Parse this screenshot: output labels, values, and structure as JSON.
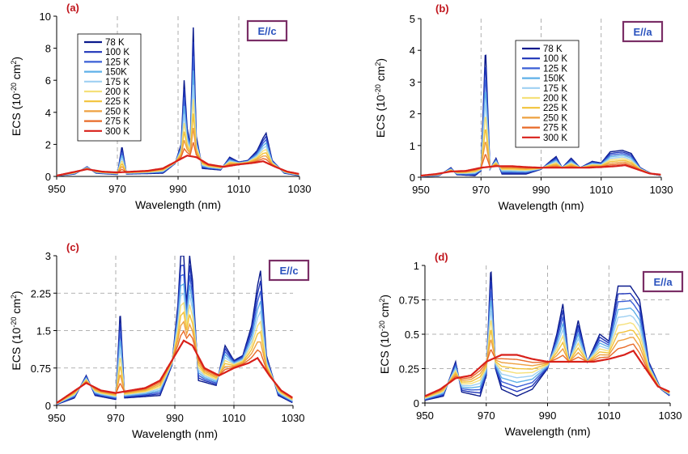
{
  "temperature_palette": [
    "#0a1a8c",
    "#1f35b8",
    "#3a5fd6",
    "#5fb0e8",
    "#9fd0f2",
    "#f5e07a",
    "#f2c23a",
    "#eea040",
    "#e86a28",
    "#d8201a"
  ],
  "chart_data": [
    {
      "type": "line",
      "panel_label": "(a)",
      "polarization": "E//c",
      "xlabel": "Wavelength (nm)",
      "ylabel": "ECS (10-20 cm2)",
      "ylabel_parts": {
        "base": "ECS (10",
        "sup1": "-20",
        "mid": " cm",
        "sup2": "2",
        "end": ")"
      },
      "xlim": [
        950,
        1030
      ],
      "ylim": [
        0,
        10
      ],
      "xticks": [
        950,
        970,
        990,
        1010,
        1030
      ],
      "yticks": [
        0,
        2,
        4,
        6,
        8,
        10
      ],
      "ytick_labels": [
        "0",
        "2",
        "4",
        "6",
        "8",
        "10"
      ],
      "grid": "dashed-vertical",
      "legend": [
        "78 K",
        "100 K",
        "125 K",
        "150K",
        "175 K",
        "200 K",
        "225 K",
        "250 K",
        "275 K",
        "300 K"
      ],
      "legend_position": "top-left",
      "series": [
        {
          "name": "78 K",
          "values": [
            [
              950,
              0.03
            ],
            [
              956,
              0.15
            ],
            [
              960,
              0.6
            ],
            [
              963,
              0.2
            ],
            [
              970,
              0.12
            ],
            [
              971.5,
              1.9
            ],
            [
              973,
              0.15
            ],
            [
              985,
              0.2
            ],
            [
              989,
              0.8
            ],
            [
              991,
              2.0
            ],
            [
              992,
              6.0
            ],
            [
              993,
              3.0
            ],
            [
              994,
              2.0
            ],
            [
              995,
              9.3
            ],
            [
              996,
              2.5
            ],
            [
              998,
              0.5
            ],
            [
              1004,
              0.4
            ],
            [
              1007,
              1.2
            ],
            [
              1010,
              0.9
            ],
            [
              1013,
              1.0
            ],
            [
              1016,
              1.6
            ],
            [
              1018,
              2.4
            ],
            [
              1019,
              2.7
            ],
            [
              1021,
              1.0
            ],
            [
              1025,
              0.2
            ],
            [
              1030,
              0.05
            ]
          ]
        },
        {
          "name": "300 K",
          "values": [
            [
              950,
              0.05
            ],
            [
              955,
              0.25
            ],
            [
              960,
              0.45
            ],
            [
              965,
              0.3
            ],
            [
              970,
              0.25
            ],
            [
              975,
              0.3
            ],
            [
              980,
              0.35
            ],
            [
              985,
              0.5
            ],
            [
              990,
              1.0
            ],
            [
              993,
              1.3
            ],
            [
              996,
              1.2
            ],
            [
              1000,
              0.75
            ],
            [
              1005,
              0.6
            ],
            [
              1010,
              0.75
            ],
            [
              1015,
              0.85
            ],
            [
              1018,
              0.95
            ],
            [
              1022,
              0.6
            ],
            [
              1026,
              0.3
            ],
            [
              1030,
              0.15
            ]
          ]
        }
      ]
    },
    {
      "type": "line",
      "panel_label": "(b)",
      "polarization": "E//a",
      "xlabel": "Wavelength (nm)",
      "ylabel": "ECS (10-20 cm2)",
      "ylabel_parts": {
        "base": "ECS (10",
        "sup1": "-20",
        "mid": " cm",
        "sup2": "2",
        "end": ")"
      },
      "xlim": [
        950,
        1030
      ],
      "ylim": [
        0,
        5
      ],
      "xticks": [
        950,
        970,
        990,
        1010,
        1030
      ],
      "yticks": [
        0,
        1,
        2,
        3,
        4,
        5
      ],
      "ytick_labels": [
        "0",
        "1",
        "2",
        "3",
        "4",
        "5"
      ],
      "grid": "dashed-vertical",
      "legend": [
        "78 K",
        "100 K",
        "125 K",
        "150K",
        "175 K",
        "200 K",
        "225 K",
        "250 K",
        "275 K",
        "300 K"
      ],
      "legend_position": "top-center",
      "series": [
        {
          "name": "78 K",
          "values": [
            [
              950,
              0.02
            ],
            [
              956,
              0.05
            ],
            [
              960,
              0.3
            ],
            [
              962,
              0.08
            ],
            [
              968,
              0.05
            ],
            [
              970,
              0.2
            ],
            [
              971.5,
              4.1
            ],
            [
              973,
              0.25
            ],
            [
              975,
              0.6
            ],
            [
              977,
              0.1
            ],
            [
              985,
              0.1
            ],
            [
              990,
              0.25
            ],
            [
              993,
              0.5
            ],
            [
              995,
              0.65
            ],
            [
              997,
              0.3
            ],
            [
              1000,
              0.6
            ],
            [
              1003,
              0.3
            ],
            [
              1007,
              0.5
            ],
            [
              1010,
              0.45
            ],
            [
              1013,
              0.8
            ],
            [
              1017,
              0.85
            ],
            [
              1020,
              0.75
            ],
            [
              1023,
              0.3
            ],
            [
              1027,
              0.1
            ],
            [
              1030,
              0.05
            ]
          ]
        },
        {
          "name": "300 K",
          "values": [
            [
              950,
              0.05
            ],
            [
              955,
              0.1
            ],
            [
              960,
              0.18
            ],
            [
              965,
              0.2
            ],
            [
              970,
              0.3
            ],
            [
              975,
              0.35
            ],
            [
              980,
              0.35
            ],
            [
              985,
              0.32
            ],
            [
              990,
              0.3
            ],
            [
              995,
              0.3
            ],
            [
              1000,
              0.3
            ],
            [
              1005,
              0.3
            ],
            [
              1010,
              0.32
            ],
            [
              1015,
              0.35
            ],
            [
              1018,
              0.38
            ],
            [
              1022,
              0.25
            ],
            [
              1026,
              0.12
            ],
            [
              1030,
              0.08
            ]
          ]
        }
      ]
    },
    {
      "type": "line",
      "panel_label": "(c)",
      "polarization": "E//c",
      "xlabel": "Wavelength (nm)",
      "ylabel": "ECS (10-20 cm2)",
      "ylabel_parts": {
        "base": "ECS (10",
        "sup1": "-20",
        "mid": " cm",
        "sup2": "2",
        "end": ")"
      },
      "xlim": [
        950,
        1030
      ],
      "ylim": [
        0,
        3
      ],
      "xticks": [
        950,
        970,
        990,
        1010,
        1030
      ],
      "yticks": [
        0,
        0.75,
        1.5,
        2.25,
        3
      ],
      "ytick_labels": [
        "0",
        "0.75",
        "1.5",
        "2.25",
        "3"
      ],
      "grid": "dashed-both",
      "legend_position": "none",
      "series": [
        {
          "name": "78 K",
          "values": [
            [
              950,
              0.02
            ],
            [
              956,
              0.15
            ],
            [
              960,
              0.6
            ],
            [
              963,
              0.2
            ],
            [
              970,
              0.12
            ],
            [
              971.5,
              1.9
            ],
            [
              973,
              0.15
            ],
            [
              985,
              0.2
            ],
            [
              989,
              0.8
            ],
            [
              991,
              2.0
            ],
            [
              992,
              3.0
            ],
            [
              993,
              3.0
            ],
            [
              994,
              2.0
            ],
            [
              995,
              3.0
            ],
            [
              996,
              2.5
            ],
            [
              998,
              0.5
            ],
            [
              1004,
              0.4
            ],
            [
              1007,
              1.2
            ],
            [
              1010,
              0.9
            ],
            [
              1013,
              1.0
            ],
            [
              1016,
              1.6
            ],
            [
              1018,
              2.4
            ],
            [
              1019,
              2.7
            ],
            [
              1021,
              1.0
            ],
            [
              1025,
              0.2
            ],
            [
              1030,
              0.05
            ]
          ]
        },
        {
          "name": "300 K",
          "values": [
            [
              950,
              0.05
            ],
            [
              955,
              0.25
            ],
            [
              960,
              0.45
            ],
            [
              965,
              0.3
            ],
            [
              970,
              0.25
            ],
            [
              975,
              0.3
            ],
            [
              980,
              0.35
            ],
            [
              985,
              0.5
            ],
            [
              990,
              1.0
            ],
            [
              993,
              1.3
            ],
            [
              996,
              1.2
            ],
            [
              1000,
              0.75
            ],
            [
              1005,
              0.6
            ],
            [
              1010,
              0.75
            ],
            [
              1015,
              0.85
            ],
            [
              1018,
              0.95
            ],
            [
              1022,
              0.6
            ],
            [
              1026,
              0.3
            ],
            [
              1030,
              0.15
            ]
          ]
        }
      ]
    },
    {
      "type": "line",
      "panel_label": "(d)",
      "polarization": "E//a",
      "xlabel": "Wavelength (nm)",
      "ylabel": "ECS (10-20 cm2)",
      "ylabel_parts": {
        "base": "ECS (10",
        "sup1": "-20",
        "mid": " cm",
        "sup2": "2",
        "end": ")"
      },
      "xlim": [
        950,
        1030
      ],
      "ylim": [
        0,
        1
      ],
      "xticks": [
        950,
        970,
        990,
        1010,
        1030
      ],
      "yticks": [
        0,
        0.25,
        0.5,
        0.75,
        1
      ],
      "ytick_labels": [
        "0",
        "0.25",
        "0.5",
        "0.75",
        "1"
      ],
      "grid": "dashed-both",
      "legend_position": "none",
      "series": [
        {
          "name": "78 K",
          "values": [
            [
              950,
              0.02
            ],
            [
              956,
              0.05
            ],
            [
              960,
              0.3
            ],
            [
              962,
              0.08
            ],
            [
              968,
              0.05
            ],
            [
              970,
              0.2
            ],
            [
              971.5,
              1.0
            ],
            [
              973,
              0.25
            ],
            [
              975,
              0.1
            ],
            [
              980,
              0.05
            ],
            [
              985,
              0.1
            ],
            [
              990,
              0.25
            ],
            [
              993,
              0.5
            ],
            [
              995,
              0.72
            ],
            [
              997,
              0.3
            ],
            [
              1000,
              0.6
            ],
            [
              1003,
              0.3
            ],
            [
              1007,
              0.5
            ],
            [
              1010,
              0.45
            ],
            [
              1013,
              0.85
            ],
            [
              1017,
              0.85
            ],
            [
              1020,
              0.75
            ],
            [
              1023,
              0.3
            ],
            [
              1027,
              0.1
            ],
            [
              1030,
              0.05
            ]
          ]
        },
        {
          "name": "300 K",
          "values": [
            [
              950,
              0.05
            ],
            [
              955,
              0.1
            ],
            [
              960,
              0.18
            ],
            [
              965,
              0.2
            ],
            [
              970,
              0.3
            ],
            [
              975,
              0.35
            ],
            [
              980,
              0.35
            ],
            [
              985,
              0.32
            ],
            [
              990,
              0.3
            ],
            [
              995,
              0.3
            ],
            [
              1000,
              0.3
            ],
            [
              1005,
              0.3
            ],
            [
              1010,
              0.32
            ],
            [
              1015,
              0.35
            ],
            [
              1018,
              0.38
            ],
            [
              1022,
              0.25
            ],
            [
              1026,
              0.12
            ],
            [
              1030,
              0.08
            ]
          ]
        }
      ]
    }
  ]
}
